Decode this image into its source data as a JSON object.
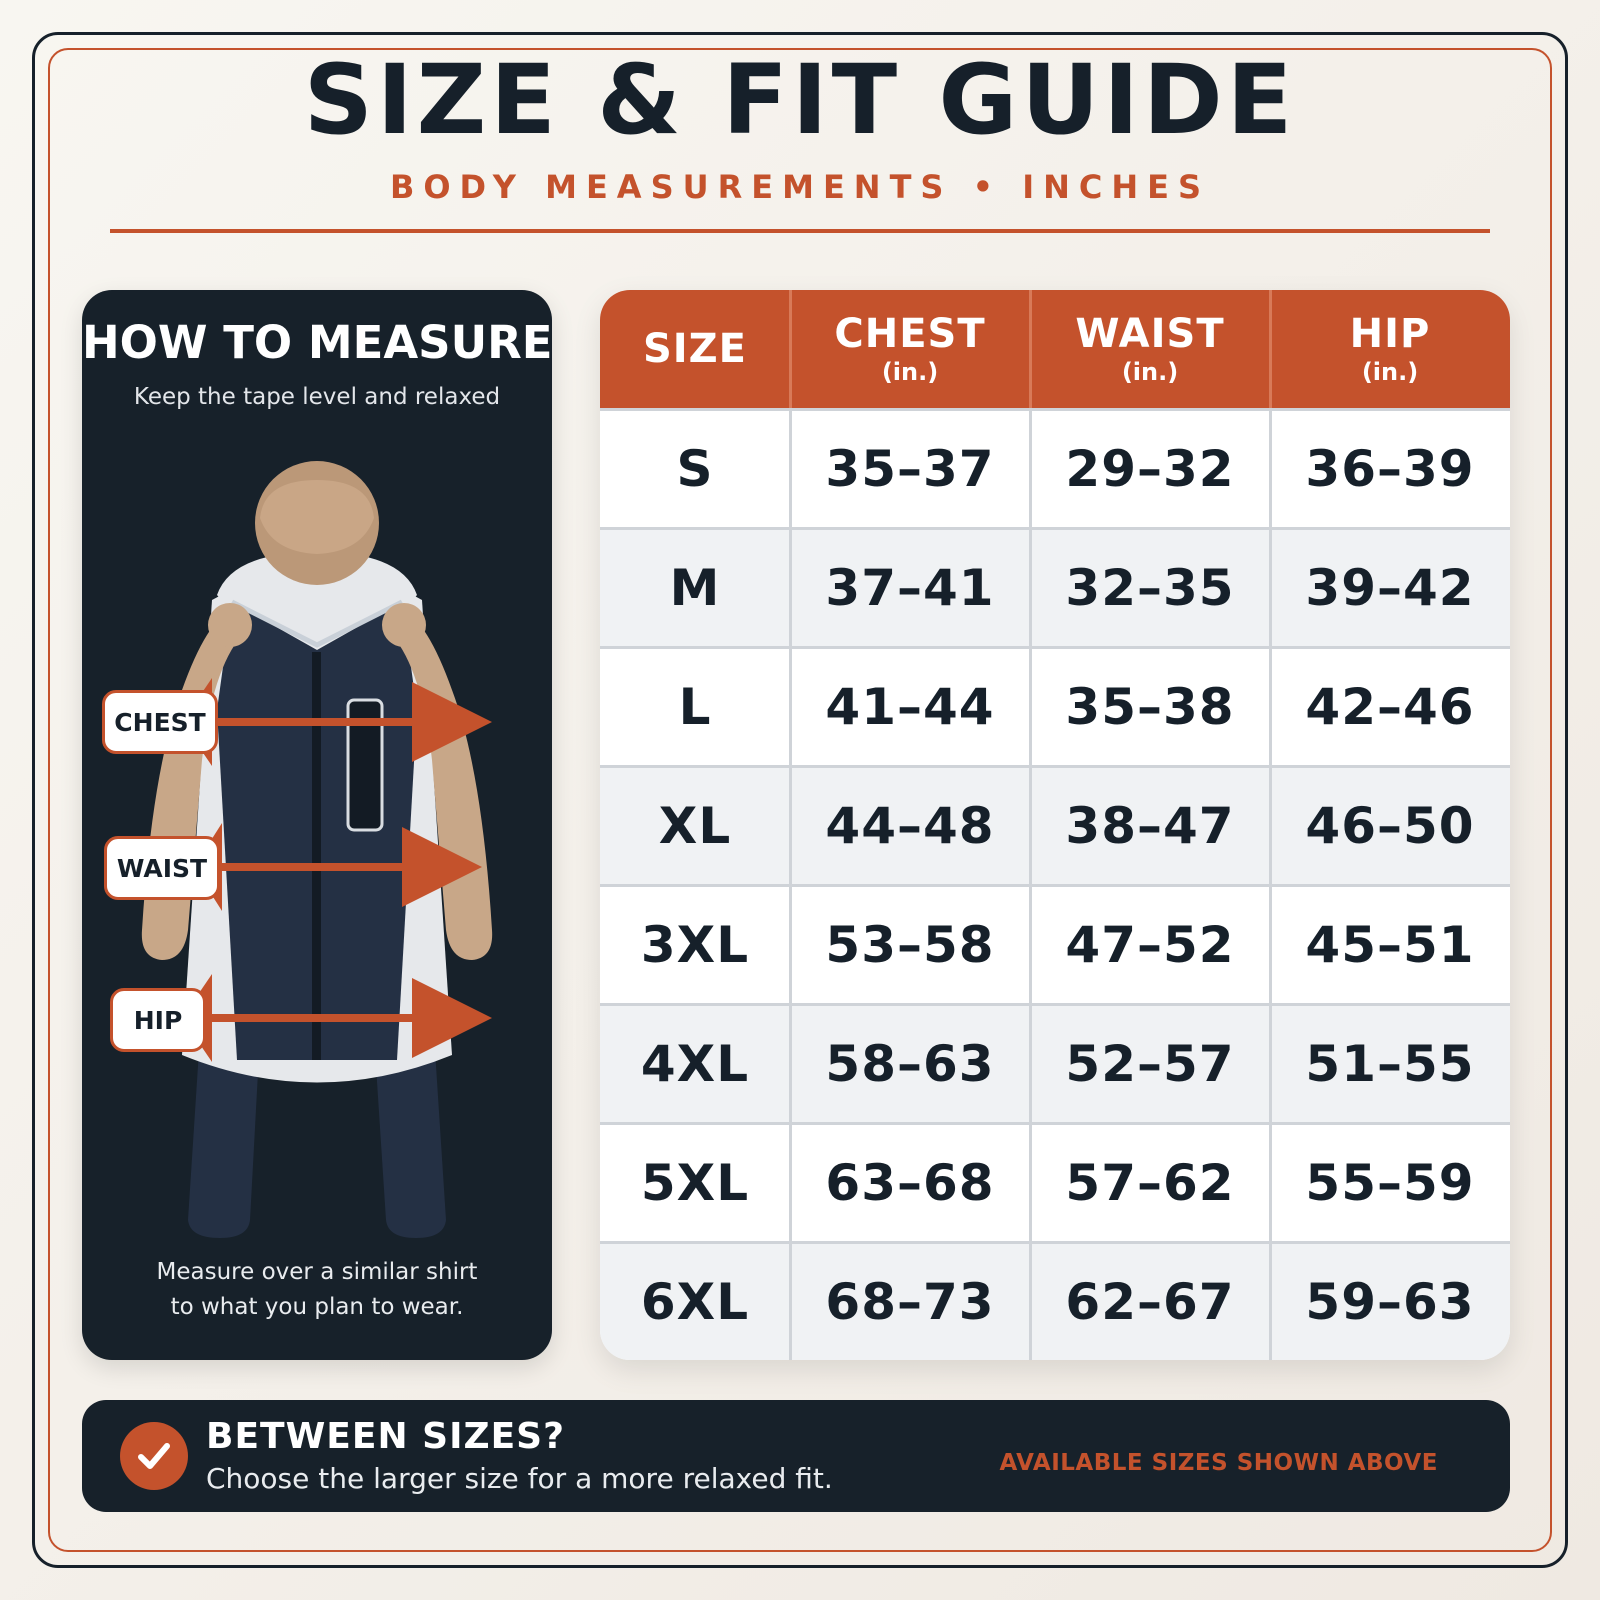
{
  "header": {
    "title": "SIZE & FIT GUIDE",
    "subtitle": "BODY MEASUREMENTS • INCHES"
  },
  "how_to_measure": {
    "title": "HOW TO MEASURE",
    "subtitle": "Keep the tape level and relaxed",
    "labels": {
      "chest": "CHEST",
      "waist": "WAIST",
      "hip": "HIP"
    },
    "note_line1": "Measure over a similar shirt",
    "note_line2": "to what you plan to wear."
  },
  "table": {
    "headers": [
      {
        "label": "SIZE",
        "unit": ""
      },
      {
        "label": "CHEST",
        "unit": "(in.)"
      },
      {
        "label": "WAIST",
        "unit": "(in.)"
      },
      {
        "label": "HIP",
        "unit": "(in.)"
      }
    ],
    "rows": [
      [
        "S",
        "35–37",
        "29–32",
        "36–39"
      ],
      [
        "M",
        "37–41",
        "32–35",
        "39–42"
      ],
      [
        "L",
        "41–44",
        "35–38",
        "42–46"
      ],
      [
        "XL",
        "44–48",
        "38–47",
        "46–50"
      ],
      [
        "3XL",
        "53–58",
        "47–52",
        "45–51"
      ],
      [
        "4XL",
        "58–63",
        "52–57",
        "51–55"
      ],
      [
        "5XL",
        "63–68",
        "57–62",
        "55–59"
      ],
      [
        "6XL",
        "68–73",
        "62–67",
        "59–63"
      ]
    ]
  },
  "footer": {
    "icon": "check-icon",
    "title": "BETWEEN SIZES?",
    "text": "Choose the larger size for a more relaxed fit.",
    "note": "AVAILABLE SIZES SHOWN ABOVE"
  },
  "colors": {
    "accent": "#c4522c",
    "dark": "#17212a",
    "background": "#f5f2ec",
    "row_alt": "#f0f2f4"
  }
}
